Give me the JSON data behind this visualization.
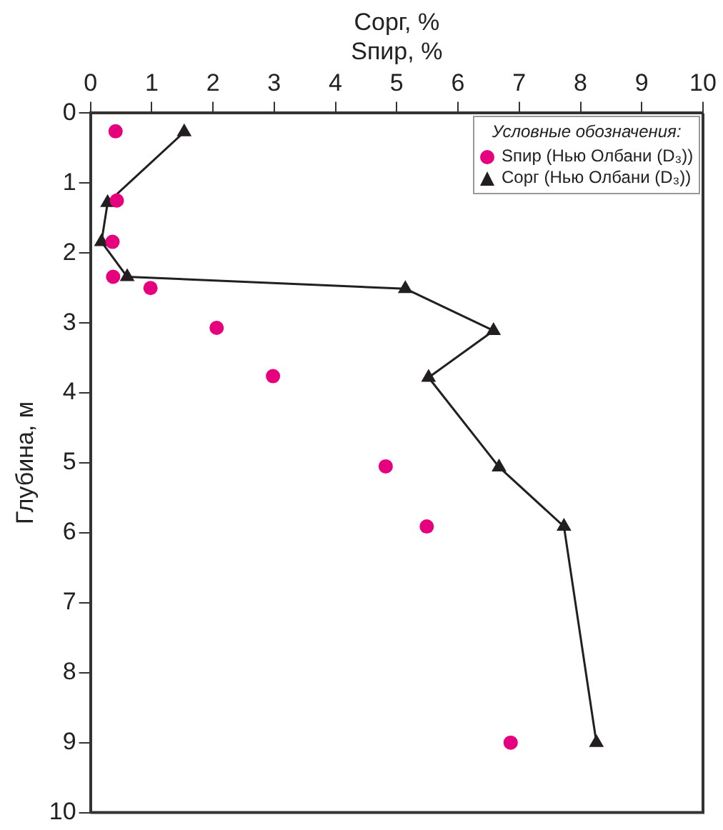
{
  "chart_data": {
    "type": "scatter",
    "xlabel": "Сорг, %\nSпир, %",
    "ylabel": "Глубина, м",
    "legend_title": "Условные обозначения:",
    "xlim": [
      0,
      10
    ],
    "xticks": [
      0,
      1,
      2,
      3,
      4,
      5,
      6,
      7,
      8,
      9,
      10
    ],
    "ylim": [
      10,
      0
    ],
    "yticks": [
      0,
      1,
      2,
      3,
      4,
      5,
      6,
      7,
      8,
      9,
      10
    ],
    "grid": false,
    "legend": "top right",
    "series": [
      {
        "name": "Sпир (Нью Олбани (D₃))",
        "type": "scatter",
        "color": "#e6007e",
        "marker": "circle",
        "x": [
          0.41,
          0.43,
          0.36,
          0.37,
          0.98,
          2.06,
          2.98,
          4.82,
          5.49,
          6.86
        ],
        "values": [
          0.26,
          1.25,
          1.84,
          2.34,
          2.5,
          3.07,
          3.76,
          5.05,
          5.91,
          9.0
        ]
      },
      {
        "name": "Сорг (Нью Олбани (D₃))",
        "type": "line",
        "color": "#231f20",
        "marker": "triangle",
        "line_style": "solid",
        "x": [
          1.53,
          0.28,
          0.18,
          0.6,
          5.14,
          6.58,
          5.52,
          6.67,
          7.73,
          8.26
        ],
        "values": [
          0.27,
          1.28,
          1.84,
          2.34,
          2.51,
          3.11,
          3.78,
          5.06,
          5.91,
          9.0
        ]
      }
    ]
  }
}
